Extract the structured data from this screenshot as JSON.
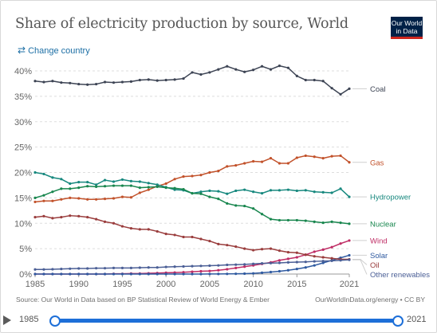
{
  "header": {
    "title": "Share of electricity production by source, World",
    "logo_line1": "Our World",
    "logo_line2": "in Data",
    "change_country": "Change country"
  },
  "footer": {
    "source": "Source: Our World in Data based on BP Statistical Review of World Energy & Ember",
    "credit": "OurWorldInData.org/energy • CC BY"
  },
  "timeline": {
    "start_label": "1985",
    "end_label": "2021",
    "range": [
      1985,
      2021
    ]
  },
  "chart_data": {
    "type": "line",
    "title": "Share of electricity production by source, World",
    "xlabel": "",
    "ylabel": "",
    "xlim": [
      1985,
      2021
    ],
    "ylim": [
      0,
      40
    ],
    "y_ticks": [
      "0%",
      "5%",
      "10%",
      "15%",
      "20%",
      "25%",
      "30%",
      "35%",
      "40%"
    ],
    "x_ticks": [
      "1985",
      "1990",
      "1995",
      "2000",
      "2005",
      "2010",
      "2015",
      "2021"
    ],
    "grid": "horizontal dashed",
    "legend": "right-side labels",
    "x": [
      1985,
      1986,
      1987,
      1988,
      1989,
      1990,
      1991,
      1992,
      1993,
      1994,
      1995,
      1996,
      1997,
      1998,
      1999,
      2000,
      2001,
      2002,
      2003,
      2004,
      2005,
      2006,
      2007,
      2008,
      2009,
      2010,
      2011,
      2012,
      2013,
      2014,
      2015,
      2016,
      2017,
      2018,
      2019,
      2020,
      2021
    ],
    "series": [
      {
        "name": "Coal",
        "color": "#3d4454",
        "values": [
          38.0,
          37.8,
          38.0,
          37.7,
          37.6,
          37.4,
          37.3,
          37.4,
          37.8,
          37.7,
          37.8,
          37.9,
          38.2,
          38.3,
          38.1,
          38.2,
          38.3,
          38.5,
          39.7,
          39.3,
          39.7,
          40.3,
          40.9,
          40.3,
          39.8,
          40.2,
          40.9,
          40.3,
          41.0,
          40.6,
          39.0,
          38.2,
          38.2,
          38.0,
          36.6,
          35.4,
          36.5
        ]
      },
      {
        "name": "Gas",
        "color": "#c2522b",
        "values": [
          14.2,
          14.4,
          14.4,
          14.7,
          15.0,
          14.9,
          14.7,
          14.7,
          14.8,
          14.9,
          15.2,
          15.1,
          16.0,
          16.6,
          17.3,
          17.8,
          18.7,
          19.2,
          19.3,
          19.5,
          20.0,
          20.3,
          21.2,
          21.4,
          21.8,
          22.2,
          22.1,
          22.8,
          21.8,
          21.8,
          22.9,
          23.3,
          23.1,
          22.8,
          23.2,
          23.3,
          22.0
        ]
      },
      {
        "name": "Hydropower",
        "color": "#17887e",
        "values": [
          20.0,
          19.7,
          19.0,
          18.7,
          17.8,
          18.1,
          18.1,
          17.6,
          18.5,
          18.2,
          18.6,
          18.3,
          18.2,
          17.9,
          17.6,
          17.1,
          16.6,
          16.5,
          15.9,
          16.2,
          16.4,
          16.3,
          15.8,
          16.4,
          16.6,
          16.2,
          15.9,
          16.5,
          16.5,
          16.6,
          16.4,
          16.5,
          16.2,
          16.1,
          16.0,
          16.8,
          15.2
        ]
      },
      {
        "name": "Nuclear",
        "color": "#18864e",
        "values": [
          15.0,
          15.5,
          16.2,
          16.8,
          16.8,
          17.0,
          17.3,
          17.2,
          17.3,
          17.4,
          17.4,
          17.4,
          17.0,
          17.1,
          17.2,
          17.0,
          16.9,
          16.7,
          15.9,
          15.8,
          15.2,
          14.8,
          13.9,
          13.5,
          13.4,
          12.9,
          11.8,
          10.8,
          10.6,
          10.6,
          10.6,
          10.5,
          10.3,
          10.1,
          10.3,
          10.1,
          9.9
        ]
      },
      {
        "name": "Wind",
        "color": "#bf2d65",
        "values": [
          0.0,
          0.0,
          0.0,
          0.0,
          0.0,
          0.0,
          0.0,
          0.0,
          0.0,
          0.05,
          0.05,
          0.1,
          0.1,
          0.15,
          0.2,
          0.25,
          0.3,
          0.35,
          0.45,
          0.55,
          0.6,
          0.75,
          0.95,
          1.2,
          1.45,
          1.7,
          2.0,
          2.3,
          2.7,
          3.0,
          3.3,
          3.8,
          4.4,
          4.8,
          5.3,
          6.0,
          6.6
        ]
      },
      {
        "name": "Solar",
        "color": "#2f5aa0",
        "values": [
          0.0,
          0.0,
          0.0,
          0.0,
          0.0,
          0.0,
          0.0,
          0.0,
          0.0,
          0.0,
          0.0,
          0.0,
          0.0,
          0.0,
          0.0,
          0.0,
          0.0,
          0.0,
          0.0,
          0.0,
          0.01,
          0.02,
          0.03,
          0.05,
          0.08,
          0.13,
          0.25,
          0.4,
          0.55,
          0.75,
          1.0,
          1.3,
          1.7,
          2.2,
          2.7,
          3.2,
          3.7
        ]
      },
      {
        "name": "Oil",
        "color": "#9a3d3d",
        "values": [
          11.2,
          11.4,
          11.0,
          11.2,
          11.5,
          11.4,
          11.2,
          10.8,
          10.3,
          10.0,
          9.4,
          9.0,
          8.8,
          8.8,
          8.4,
          7.9,
          7.7,
          7.3,
          7.3,
          6.9,
          6.5,
          5.9,
          5.7,
          5.4,
          5.0,
          4.7,
          4.9,
          5.0,
          4.6,
          4.3,
          4.2,
          3.8,
          3.5,
          3.3,
          3.1,
          2.9,
          2.9
        ]
      },
      {
        "name": "Other renewables",
        "color": "#4b5f96",
        "values": [
          0.9,
          0.9,
          0.95,
          1.0,
          1.05,
          1.1,
          1.1,
          1.15,
          1.15,
          1.2,
          1.2,
          1.2,
          1.25,
          1.3,
          1.3,
          1.4,
          1.45,
          1.5,
          1.55,
          1.6,
          1.65,
          1.7,
          1.8,
          1.85,
          1.9,
          2.0,
          2.1,
          2.15,
          2.2,
          2.3,
          2.35,
          2.4,
          2.5,
          2.55,
          2.6,
          2.7,
          2.8
        ]
      }
    ]
  }
}
